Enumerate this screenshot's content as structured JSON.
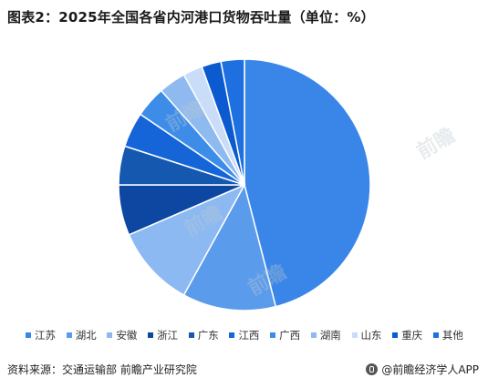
{
  "title": "图表2：2025年全国各省内河港口货物吞吐量（单位：%）",
  "chart_data": {
    "type": "pie",
    "title": "图表2：2025年全国各省内河港口货物吞吐量（单位：%）",
    "unit": "%",
    "slices": [
      {
        "label": "江苏",
        "value": 46.0,
        "color": "#3a86e8"
      },
      {
        "label": "湖北",
        "value": 12.0,
        "color": "#5b9bec"
      },
      {
        "label": "安徽",
        "value": 10.5,
        "color": "#8cb9f2"
      },
      {
        "label": "浙江",
        "value": 6.5,
        "color": "#0d47a1"
      },
      {
        "label": "广东",
        "value": 5.0,
        "color": "#1558b0"
      },
      {
        "label": "江西",
        "value": 4.5,
        "color": "#1565d8"
      },
      {
        "label": "广西",
        "value": 4.0,
        "color": "#3d8de8"
      },
      {
        "label": "湖南",
        "value": 3.5,
        "color": "#8fbaf0"
      },
      {
        "label": "山东",
        "value": 2.5,
        "color": "#c9dcf8"
      },
      {
        "label": "重庆",
        "value": 2.5,
        "color": "#0b5ad0"
      },
      {
        "label": "其他",
        "value": 3.0,
        "color": "#1e6fe0"
      }
    ],
    "legend_position": "bottom"
  },
  "footer": {
    "source": "资料来源：交通运输部  前瞻产业研究院",
    "credit": "@前瞻经济学人APP"
  }
}
